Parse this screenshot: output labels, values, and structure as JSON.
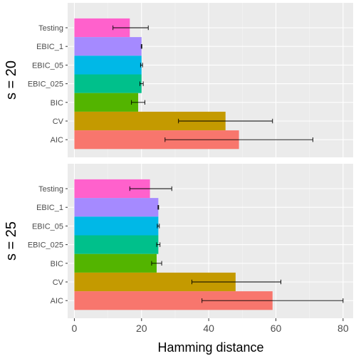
{
  "chart_data": {
    "type": "bar",
    "orientation": "horizontal",
    "xlabel": "Hamming distance",
    "xlim": [
      -2,
      83
    ],
    "xticks": [
      0,
      20,
      40,
      60,
      80
    ],
    "grid": true,
    "legend": "none",
    "categories": [
      "Testing",
      "EBIC_1",
      "EBIC_05",
      "EBIC_025",
      "BIC",
      "CV",
      "AIC"
    ],
    "colors": {
      "Testing": "#ff61cc",
      "EBIC_1": "#a58aff",
      "EBIC_05": "#00b8e7",
      "EBIC_025": "#00c08b",
      "BIC": "#53b400",
      "CV": "#c49a00",
      "AIC": "#f8766d"
    },
    "panels": [
      {
        "label": "s = 20",
        "bars": [
          {
            "category": "Testing",
            "value": 16.5,
            "err_low": 11.5,
            "err_high": 22
          },
          {
            "category": "EBIC_1",
            "value": 20,
            "err_low": 19.9,
            "err_high": 20.1
          },
          {
            "category": "EBIC_05",
            "value": 20,
            "err_low": 19.7,
            "err_high": 20.3
          },
          {
            "category": "EBIC_025",
            "value": 20,
            "err_low": 19.5,
            "err_high": 20.5
          },
          {
            "category": "BIC",
            "value": 19,
            "err_low": 17,
            "err_high": 21
          },
          {
            "category": "CV",
            "value": 45,
            "err_low": 31,
            "err_high": 59
          },
          {
            "category": "AIC",
            "value": 49,
            "err_low": 27,
            "err_high": 71
          }
        ]
      },
      {
        "label": "s = 25",
        "bars": [
          {
            "category": "Testing",
            "value": 22.5,
            "err_low": 16.5,
            "err_high": 29
          },
          {
            "category": "EBIC_1",
            "value": 25,
            "err_low": 24.9,
            "err_high": 25.1
          },
          {
            "category": "EBIC_05",
            "value": 25,
            "err_low": 24.7,
            "err_high": 25.3
          },
          {
            "category": "EBIC_025",
            "value": 25,
            "err_low": 24.5,
            "err_high": 25.5
          },
          {
            "category": "BIC",
            "value": 24.5,
            "err_low": 23,
            "err_high": 26
          },
          {
            "category": "CV",
            "value": 48,
            "err_low": 35,
            "err_high": 61.5
          },
          {
            "category": "AIC",
            "value": 59,
            "err_low": 38,
            "err_high": 80
          }
        ]
      }
    ]
  }
}
